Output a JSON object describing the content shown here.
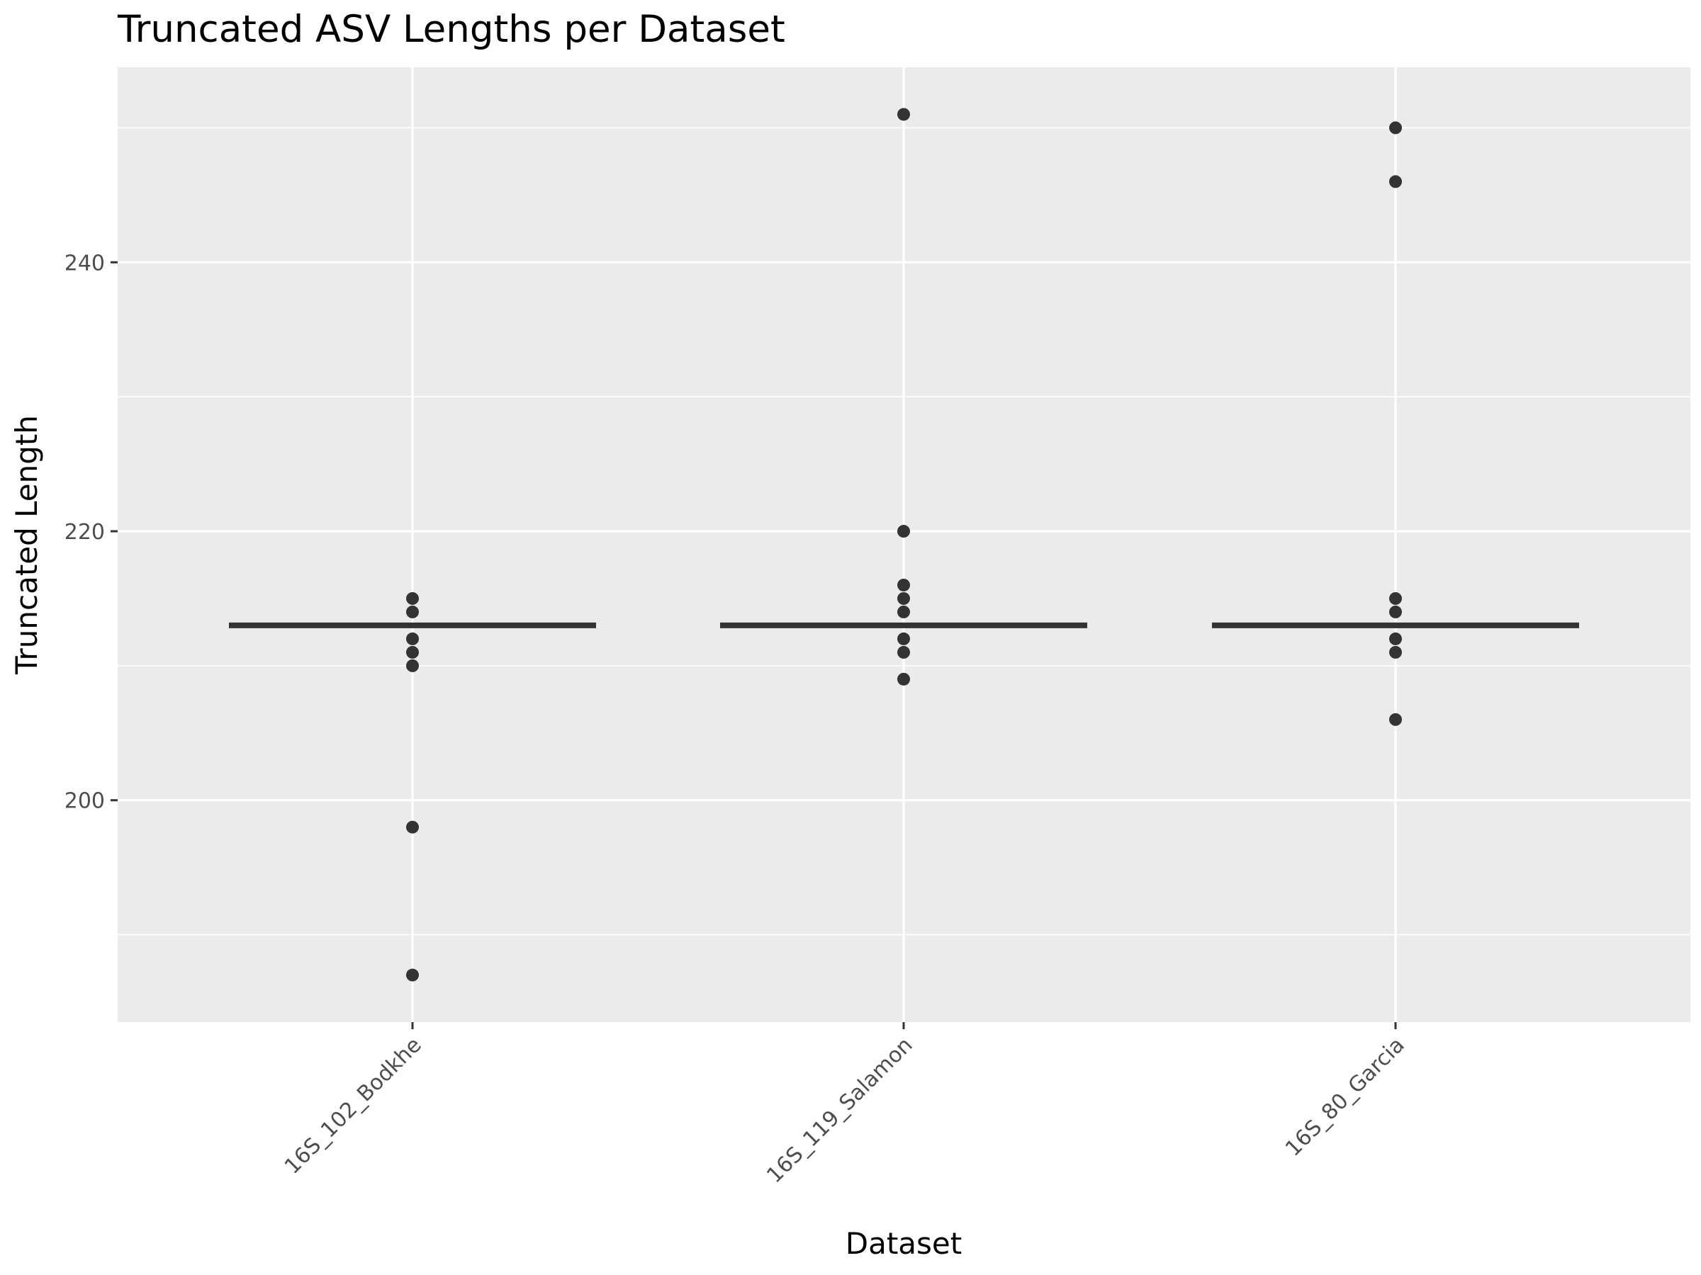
{
  "chart_data": {
    "type": "scatter",
    "title": "Truncated ASV Lengths per Dataset",
    "xlabel": "Dataset",
    "ylabel": "Truncated Length",
    "categories": [
      "16S_102_Bodkhe",
      "16S_119_Salamon",
      "16S_80_Garcia"
    ],
    "yticks": [
      200,
      220,
      240
    ],
    "ylim": [
      183.5,
      254.5
    ],
    "grid": true,
    "series": [
      {
        "category": "16S_102_Bodkhe",
        "points": [
          215,
          214,
          212,
          211,
          210,
          198,
          187
        ],
        "median": 213
      },
      {
        "category": "16S_119_Salamon",
        "points": [
          251,
          220,
          216,
          215,
          214,
          212,
          211,
          209
        ],
        "median": 213
      },
      {
        "category": "16S_80_Garcia",
        "points": [
          250,
          246,
          215,
          214,
          212,
          211,
          206
        ],
        "median": 213
      }
    ],
    "colors": {
      "panel": "#ebebeb",
      "grid": "#ffffff",
      "points": "#333333",
      "median": "#333333"
    }
  }
}
